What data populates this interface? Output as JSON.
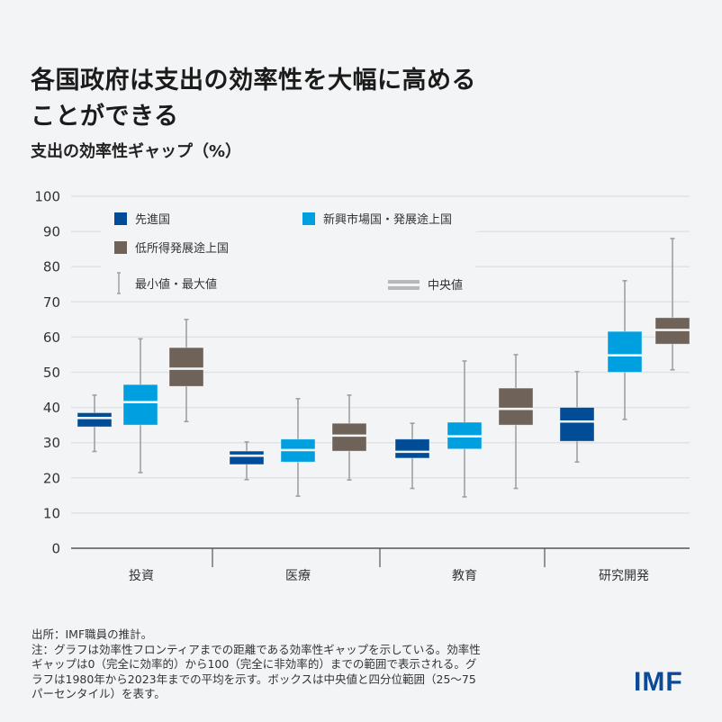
{
  "header": {
    "title_line1": "各国政府は支出の効率性を大幅に高める",
    "title_line2": "ことができる",
    "subtitle": "支出の効率性ギャップ（%）"
  },
  "chart_data": {
    "type": "boxplot",
    "title": "各国政府は支出の効率性を大幅に高めることができる",
    "ylabel": "支出の効率性ギャップ（%）",
    "xlabel": "",
    "ylim": [
      0,
      100
    ],
    "yticks": [
      0,
      10,
      20,
      30,
      40,
      50,
      60,
      70,
      80,
      90,
      100
    ],
    "grid": true,
    "legend_position": "top-left",
    "categories": [
      "投資",
      "医療",
      "教育",
      "研究開発"
    ],
    "series": [
      {
        "name": "先進国",
        "color": "#004c97",
        "values": [
          {
            "min": 27.5,
            "q1": 34.5,
            "median": 37,
            "q3": 38.5,
            "max": 43.5
          },
          {
            "min": 19.5,
            "q1": 23.8,
            "median": 26.3,
            "q3": 27.6,
            "max": 30.2
          },
          {
            "min": 17,
            "q1": 25.6,
            "median": 27.4,
            "q3": 31,
            "max": 35.5
          },
          {
            "min": 24.5,
            "q1": 30.4,
            "median": 36,
            "q3": 40,
            "max": 50.2
          }
        ]
      },
      {
        "name": "新興市場国・発展途上国",
        "color": "#009fdf",
        "values": [
          {
            "min": 21.5,
            "q1": 35,
            "median": 41.5,
            "q3": 46.5,
            "max": 59.5
          },
          {
            "min": 14.8,
            "q1": 24.5,
            "median": 27.9,
            "q3": 31,
            "max": 42.5
          },
          {
            "min": 14.6,
            "q1": 28.2,
            "median": 31.8,
            "q3": 35.8,
            "max": 53.2
          },
          {
            "min": 36.6,
            "q1": 50,
            "median": 54.8,
            "q3": 61.6,
            "max": 76
          }
        ]
      },
      {
        "name": "低所得発展途上国",
        "color": "#6e6259",
        "values": [
          {
            "min": 36,
            "q1": 46,
            "median": 51,
            "q3": 57,
            "max": 65
          },
          {
            "min": 19.4,
            "q1": 27.6,
            "median": 32,
            "q3": 35.5,
            "max": 43.5
          },
          {
            "min": 17,
            "q1": 35,
            "median": 39.6,
            "q3": 45.5,
            "max": 55
          },
          {
            "min": 50.7,
            "q1": 58,
            "median": 62,
            "q3": 65.5,
            "max": 88
          }
        ]
      }
    ],
    "legend": {
      "whisker_label": "最小値・最大値",
      "median_label": "中央値"
    }
  },
  "colors": {
    "whisker": "#a0a0a0",
    "grid": "#e1e2e4",
    "axis": "#555555",
    "median_legend": "#b9b9b9",
    "background": "#f3f4f6",
    "imf_blue": "#0b4b96"
  },
  "footer": {
    "source": "出所：IMF職員の推計。",
    "note_lines": [
      "注：グラフは効率性フロンティアまでの距離である効率性ギャップを示している。効率性",
      "ギャップは0（完全に効率的）から100（完全に非効率的）までの範囲で表示される。グ",
      "ラフは1980年から2023年までの平均を示す。ボックスは中央値と四分位範囲（25〜75",
      "パーセンタイル）を表す。"
    ],
    "logo": "IMF"
  }
}
